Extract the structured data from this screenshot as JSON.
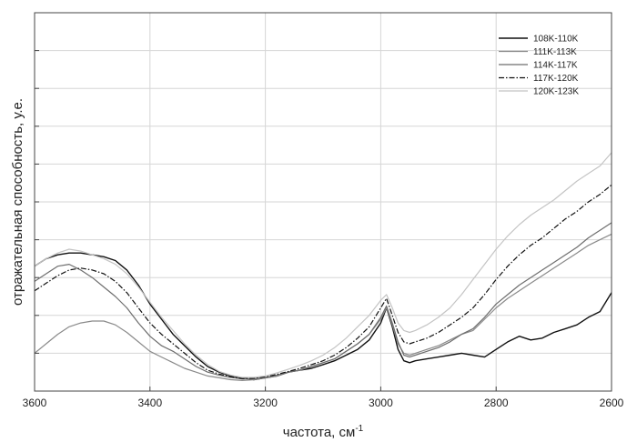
{
  "chart_data": {
    "type": "line",
    "title": "",
    "xlabel": "частота, см",
    "xlabel_superscript": "-1",
    "ylabel": "отражательная способность, у.е.",
    "xlim": [
      3600,
      2600
    ],
    "x_reversed": true,
    "ylim": [
      0,
      10
    ],
    "grid": true,
    "legend_position": "top-right",
    "x_ticks": [
      3600,
      3400,
      3200,
      3000,
      2800,
      2600
    ],
    "x_tick_labels": [
      "3600",
      "3400",
      "3200",
      "3000",
      "2800",
      "2600"
    ],
    "y_ticks": [
      1,
      2,
      3,
      4,
      5,
      6,
      7,
      8,
      9
    ],
    "series": [
      {
        "name": "108K-110K",
        "color": "#111111",
        "dash": "solid",
        "width": 1.4,
        "x": [
          3600,
          3580,
          3560,
          3540,
          3520,
          3500,
          3480,
          3460,
          3440,
          3420,
          3400,
          3380,
          3360,
          3340,
          3320,
          3300,
          3280,
          3260,
          3240,
          3220,
          3200,
          3180,
          3160,
          3140,
          3120,
          3100,
          3080,
          3060,
          3040,
          3020,
          3000,
          2990,
          2980,
          2970,
          2960,
          2950,
          2940,
          2920,
          2900,
          2880,
          2860,
          2840,
          2820,
          2800,
          2780,
          2760,
          2740,
          2720,
          2700,
          2680,
          2660,
          2640,
          2620,
          2600
        ],
        "y": [
          3.3,
          3.5,
          3.6,
          3.65,
          3.65,
          3.6,
          3.55,
          3.45,
          3.2,
          2.8,
          2.3,
          1.9,
          1.5,
          1.2,
          0.9,
          0.65,
          0.5,
          0.4,
          0.35,
          0.3,
          0.35,
          0.4,
          0.5,
          0.55,
          0.6,
          0.7,
          0.8,
          0.95,
          1.1,
          1.35,
          1.8,
          2.2,
          1.7,
          1.1,
          0.8,
          0.75,
          0.8,
          0.85,
          0.9,
          0.95,
          1.0,
          0.95,
          0.9,
          1.1,
          1.3,
          1.45,
          1.35,
          1.4,
          1.55,
          1.65,
          1.75,
          1.95,
          2.1,
          2.6
        ]
      },
      {
        "name": "111K-113K",
        "color": "#8a8a8a",
        "dash": "solid",
        "width": 1.2,
        "x": [
          3600,
          3580,
          3560,
          3540,
          3520,
          3500,
          3480,
          3460,
          3440,
          3420,
          3400,
          3380,
          3360,
          3340,
          3320,
          3300,
          3280,
          3260,
          3240,
          3220,
          3200,
          3180,
          3160,
          3140,
          3120,
          3100,
          3080,
          3060,
          3040,
          3020,
          3000,
          2990,
          2980,
          2970,
          2960,
          2950,
          2940,
          2920,
          2900,
          2880,
          2860,
          2840,
          2820,
          2800,
          2780,
          2760,
          2740,
          2720,
          2700,
          2680,
          2660,
          2640,
          2620,
          2600
        ],
        "y": [
          1.0,
          1.25,
          1.5,
          1.7,
          1.8,
          1.85,
          1.85,
          1.75,
          1.55,
          1.3,
          1.05,
          0.9,
          0.75,
          0.6,
          0.5,
          0.4,
          0.35,
          0.3,
          0.28,
          0.3,
          0.35,
          0.4,
          0.5,
          0.55,
          0.65,
          0.75,
          0.85,
          1.05,
          1.25,
          1.5,
          1.9,
          2.2,
          1.75,
          1.25,
          1.0,
          0.95,
          1.0,
          1.1,
          1.2,
          1.35,
          1.5,
          1.6,
          1.9,
          2.2,
          2.45,
          2.65,
          2.85,
          3.05,
          3.25,
          3.45,
          3.65,
          3.85,
          4.0,
          4.15
        ]
      },
      {
        "name": "114K-117K",
        "color": "#6e6e6e",
        "dash": "solid",
        "width": 1.2,
        "x": [
          3600,
          3580,
          3560,
          3540,
          3520,
          3500,
          3480,
          3460,
          3440,
          3420,
          3400,
          3380,
          3360,
          3340,
          3320,
          3300,
          3280,
          3260,
          3240,
          3220,
          3200,
          3180,
          3160,
          3140,
          3120,
          3100,
          3080,
          3060,
          3040,
          3020,
          3000,
          2990,
          2980,
          2970,
          2960,
          2950,
          2940,
          2920,
          2900,
          2880,
          2860,
          2840,
          2820,
          2800,
          2780,
          2760,
          2740,
          2720,
          2700,
          2680,
          2660,
          2640,
          2620,
          2600
        ],
        "y": [
          2.9,
          3.1,
          3.3,
          3.35,
          3.2,
          3.0,
          2.75,
          2.5,
          2.2,
          1.8,
          1.45,
          1.2,
          1.05,
          0.85,
          0.65,
          0.5,
          0.42,
          0.36,
          0.32,
          0.33,
          0.36,
          0.42,
          0.5,
          0.56,
          0.65,
          0.75,
          0.85,
          1.05,
          1.25,
          1.5,
          1.95,
          2.25,
          1.8,
          1.3,
          0.95,
          0.9,
          0.95,
          1.05,
          1.15,
          1.3,
          1.5,
          1.65,
          1.95,
          2.3,
          2.55,
          2.8,
          3.0,
          3.2,
          3.4,
          3.6,
          3.8,
          4.05,
          4.25,
          4.45
        ]
      },
      {
        "name": "117K-120K",
        "color": "#111111",
        "dash": "6,2,1.5,2",
        "width": 1.2,
        "x": [
          3600,
          3580,
          3560,
          3540,
          3520,
          3500,
          3480,
          3460,
          3440,
          3420,
          3400,
          3380,
          3360,
          3340,
          3320,
          3300,
          3280,
          3260,
          3240,
          3220,
          3200,
          3180,
          3160,
          3140,
          3120,
          3100,
          3080,
          3060,
          3040,
          3020,
          3000,
          2990,
          2980,
          2970,
          2960,
          2950,
          2940,
          2920,
          2900,
          2880,
          2860,
          2840,
          2820,
          2800,
          2780,
          2760,
          2740,
          2720,
          2700,
          2680,
          2660,
          2640,
          2620,
          2600
        ],
        "y": [
          2.65,
          2.85,
          3.05,
          3.2,
          3.25,
          3.2,
          3.1,
          2.9,
          2.6,
          2.2,
          1.8,
          1.5,
          1.25,
          1.0,
          0.75,
          0.55,
          0.45,
          0.38,
          0.33,
          0.34,
          0.38,
          0.44,
          0.52,
          0.6,
          0.7,
          0.8,
          0.95,
          1.15,
          1.4,
          1.7,
          2.2,
          2.45,
          2.0,
          1.55,
          1.3,
          1.25,
          1.3,
          1.4,
          1.55,
          1.75,
          1.95,
          2.2,
          2.55,
          2.95,
          3.3,
          3.6,
          3.85,
          4.05,
          4.3,
          4.55,
          4.75,
          5.0,
          5.2,
          5.45
        ]
      },
      {
        "name": "120K-123K",
        "color": "#c4c4c4",
        "dash": "solid",
        "width": 1.2,
        "x": [
          3600,
          3580,
          3560,
          3540,
          3520,
          3500,
          3480,
          3460,
          3440,
          3420,
          3400,
          3380,
          3360,
          3340,
          3320,
          3300,
          3280,
          3260,
          3240,
          3220,
          3200,
          3180,
          3160,
          3140,
          3120,
          3100,
          3080,
          3060,
          3040,
          3020,
          3000,
          2990,
          2980,
          2970,
          2960,
          2950,
          2940,
          2920,
          2900,
          2880,
          2860,
          2840,
          2820,
          2800,
          2780,
          2760,
          2740,
          2720,
          2700,
          2680,
          2660,
          2640,
          2620,
          2600
        ],
        "y": [
          3.3,
          3.5,
          3.65,
          3.75,
          3.7,
          3.6,
          3.5,
          3.35,
          3.1,
          2.75,
          2.35,
          1.95,
          1.6,
          1.25,
          0.95,
          0.7,
          0.52,
          0.42,
          0.36,
          0.36,
          0.4,
          0.48,
          0.58,
          0.68,
          0.8,
          0.95,
          1.15,
          1.4,
          1.7,
          2.0,
          2.4,
          2.55,
          2.2,
          1.8,
          1.6,
          1.55,
          1.6,
          1.75,
          1.95,
          2.2,
          2.55,
          2.95,
          3.35,
          3.75,
          4.1,
          4.4,
          4.65,
          4.85,
          5.05,
          5.3,
          5.55,
          5.75,
          5.95,
          6.3
        ]
      }
    ]
  }
}
